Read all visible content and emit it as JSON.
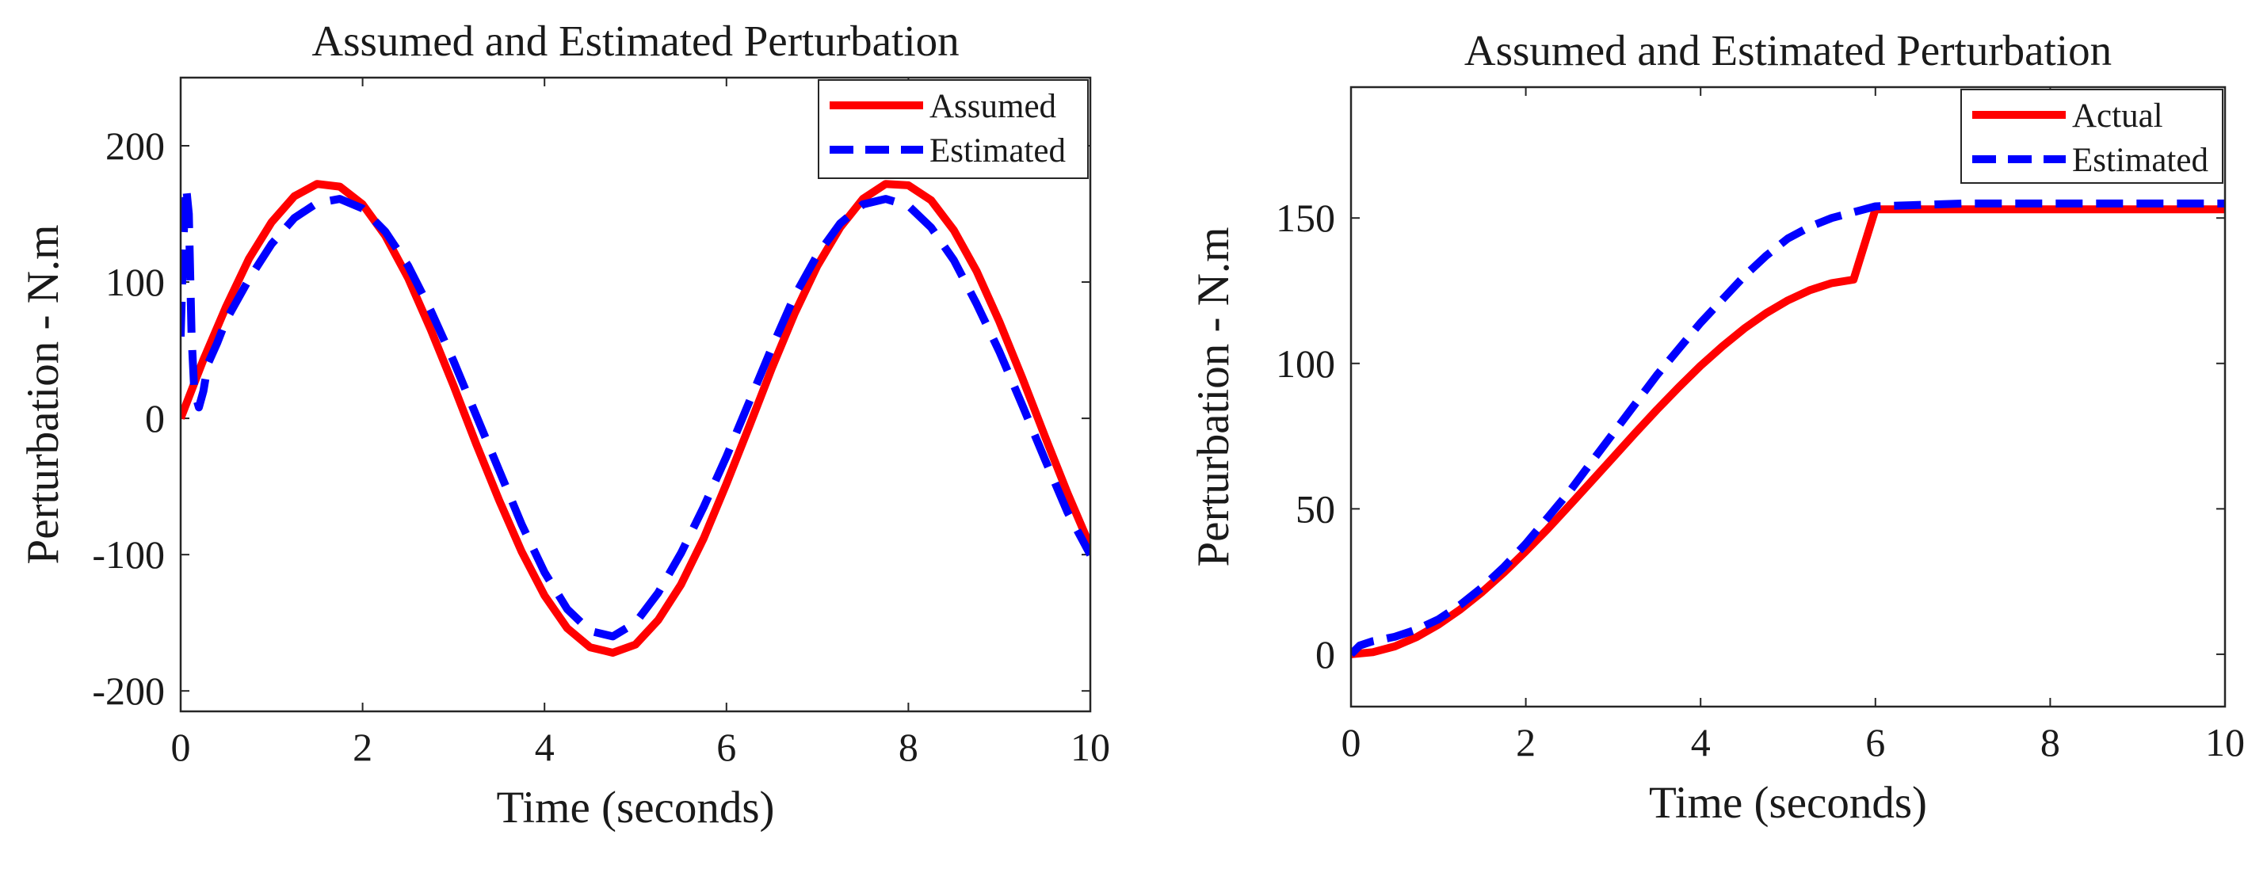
{
  "chart_data": [
    {
      "type": "line",
      "title": "Assumed and Estimated Perturbation",
      "xlabel": "Time (seconds)",
      "ylabel": "Perturbation - N.m",
      "xlim": [
        0,
        10
      ],
      "ylim": [
        -215,
        250
      ],
      "xticks": [
        0,
        2,
        4,
        6,
        8,
        10
      ],
      "yticks": [
        -200,
        -100,
        0,
        100,
        200
      ],
      "grid": false,
      "legend_position": "top-right",
      "series": [
        {
          "name": "Assumed",
          "color": "#ff0000",
          "style": "solid",
          "x": [
            0,
            0.25,
            0.5,
            0.75,
            1,
            1.25,
            1.5,
            1.75,
            2,
            2.25,
            2.5,
            2.75,
            3,
            3.25,
            3.5,
            3.75,
            4,
            4.25,
            4.5,
            4.75,
            5,
            5.25,
            5.5,
            5.75,
            6,
            6.25,
            6.5,
            6.75,
            7,
            7.25,
            7.5,
            7.75,
            8,
            8.25,
            8.5,
            8.75,
            9,
            9.25,
            9.5,
            9.75,
            10
          ],
          "y": [
            0,
            43,
            82,
            117,
            144,
            163,
            172,
            170,
            157,
            134,
            103,
            65,
            24,
            -19,
            -60,
            -98,
            -130,
            -154,
            -168,
            -172,
            -166,
            -148,
            -122,
            -88,
            -48,
            -6,
            37,
            77,
            112,
            140,
            161,
            172,
            171,
            160,
            138,
            108,
            71,
            30,
            -13,
            -55,
            -94
          ]
        },
        {
          "name": "Estimated",
          "color": "#0000ff",
          "style": "dashed",
          "x": [
            0,
            0.03,
            0.06,
            0.09,
            0.12,
            0.15,
            0.2,
            0.25,
            0.3,
            0.4,
            0.5,
            0.75,
            1,
            1.25,
            1.5,
            1.75,
            2,
            2.25,
            2.5,
            2.75,
            3,
            3.25,
            3.5,
            3.75,
            4,
            4.25,
            4.5,
            4.75,
            5,
            5.25,
            5.5,
            5.75,
            6,
            6.25,
            6.5,
            6.75,
            7,
            7.25,
            7.5,
            7.75,
            8,
            8.25,
            8.5,
            8.75,
            9,
            9.25,
            9.5,
            9.75,
            10
          ],
          "y": [
            60,
            130,
            170,
            150,
            60,
            20,
            8,
            20,
            40,
            55,
            72,
            102,
            128,
            147,
            158,
            161,
            154,
            137,
            112,
            79,
            42,
            2,
            -38,
            -78,
            -113,
            -140,
            -156,
            -160,
            -150,
            -128,
            -99,
            -65,
            -28,
            12,
            52,
            90,
            120,
            143,
            157,
            161,
            156,
            140,
            116,
            84,
            49,
            10,
            -30,
            -69,
            -100
          ]
        }
      ]
    },
    {
      "type": "line",
      "title": "Assumed and Estimated Perturbation",
      "xlabel": "Time (seconds)",
      "ylabel": "Perturbation - N.m",
      "xlim": [
        0,
        10
      ],
      "ylim": [
        -18,
        195
      ],
      "xticks": [
        0,
        2,
        4,
        6,
        8,
        10
      ],
      "yticks": [
        0,
        50,
        100,
        150
      ],
      "grid": false,
      "legend_position": "top-right",
      "series": [
        {
          "name": "Actual",
          "color": "#ff0000",
          "style": "solid",
          "x": [
            0,
            0.25,
            0.5,
            0.75,
            1,
            1.25,
            1.5,
            1.75,
            2,
            2.25,
            2.5,
            2.75,
            3,
            3.25,
            3.5,
            3.75,
            4,
            4.25,
            4.5,
            4.75,
            5,
            5.25,
            5.5,
            5.75,
            6,
            7,
            8,
            9,
            10
          ],
          "y": [
            0,
            0.7,
            2.7,
            5.9,
            10.2,
            15.4,
            21.4,
            28.1,
            35.4,
            43.1,
            51.2,
            59.4,
            67.7,
            76,
            84.1,
            91.8,
            99.2,
            105.9,
            112,
            117.3,
            121.7,
            125.2,
            127.6,
            128.8,
            153,
            153,
            153,
            153,
            153
          ]
        },
        {
          "name": "Estimated",
          "color": "#0000ff",
          "style": "dashed",
          "x": [
            0,
            0.1,
            0.25,
            0.5,
            0.75,
            1,
            1.25,
            1.5,
            1.75,
            2,
            2.25,
            2.5,
            2.75,
            3,
            3.25,
            3.5,
            3.75,
            4,
            4.25,
            4.5,
            4.75,
            5,
            5.25,
            5.5,
            5.75,
            6,
            7,
            8,
            9,
            10
          ],
          "y": [
            0,
            3,
            4.5,
            6,
            8.5,
            12,
            17,
            23,
            30,
            38,
            47,
            56,
            66,
            76,
            86,
            96,
            105,
            114,
            122,
            130,
            137,
            143,
            147,
            150,
            152,
            154,
            155,
            155,
            155,
            155
          ]
        }
      ]
    }
  ]
}
